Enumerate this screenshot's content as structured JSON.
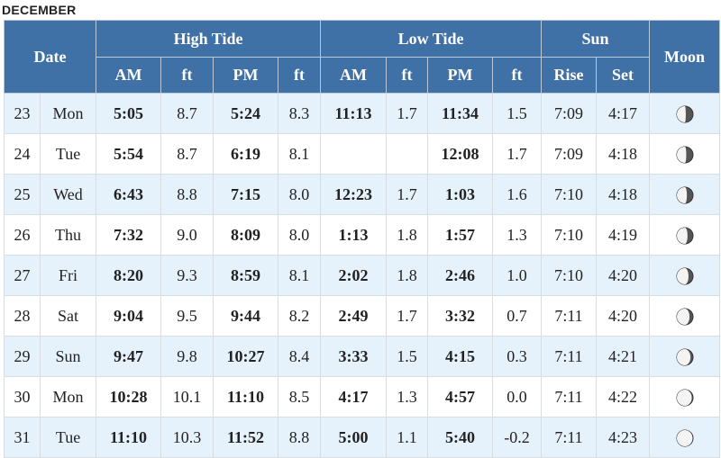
{
  "month": "DECEMBER",
  "headers": {
    "date": "Date",
    "high_tide": "High Tide",
    "low_tide": "Low Tide",
    "sun": "Sun",
    "moon": "Moon",
    "am": "AM",
    "ft": "ft",
    "pm": "PM",
    "rise": "Rise",
    "set": "Set"
  },
  "rows": [
    {
      "day": "23",
      "dow": "Mon",
      "high_am": "5:05",
      "high_am_ft": "8.7",
      "high_pm": "5:24",
      "high_pm_ft": "8.3",
      "low_am": "11:13",
      "low_am_ft": "1.7",
      "low_pm": "11:34",
      "low_pm_ft": "1.5",
      "sunrise": "7:09",
      "sunset": "4:17",
      "moon": "last-quarter-moon-icon"
    },
    {
      "day": "24",
      "dow": "Tue",
      "high_am": "5:54",
      "high_am_ft": "8.7",
      "high_pm": "6:19",
      "high_pm_ft": "8.1",
      "low_am": "",
      "low_am_ft": "",
      "low_pm": "12:08",
      "low_pm_ft": "1.7",
      "sunrise": "7:09",
      "sunset": "4:18",
      "moon": "last-quarter-moon-icon"
    },
    {
      "day": "25",
      "dow": "Wed",
      "high_am": "6:43",
      "high_am_ft": "8.8",
      "high_pm": "7:15",
      "high_pm_ft": "8.0",
      "low_am": "12:23",
      "low_am_ft": "1.7",
      "low_pm": "1:03",
      "low_pm_ft": "1.6",
      "sunrise": "7:10",
      "sunset": "4:18",
      "moon": "last-quarter-moon-icon"
    },
    {
      "day": "26",
      "dow": "Thu",
      "high_am": "7:32",
      "high_am_ft": "9.0",
      "high_pm": "8:09",
      "high_pm_ft": "8.0",
      "low_am": "1:13",
      "low_am_ft": "1.8",
      "low_pm": "1:57",
      "low_pm_ft": "1.3",
      "sunrise": "7:10",
      "sunset": "4:19",
      "moon": "waning-crescent-moon-icon"
    },
    {
      "day": "27",
      "dow": "Fri",
      "high_am": "8:20",
      "high_am_ft": "9.3",
      "high_pm": "8:59",
      "high_pm_ft": "8.1",
      "low_am": "2:02",
      "low_am_ft": "1.8",
      "low_pm": "2:46",
      "low_pm_ft": "1.0",
      "sunrise": "7:10",
      "sunset": "4:20",
      "moon": "waning-crescent-moon-icon"
    },
    {
      "day": "28",
      "dow": "Sat",
      "high_am": "9:04",
      "high_am_ft": "9.5",
      "high_pm": "9:44",
      "high_pm_ft": "8.2",
      "low_am": "2:49",
      "low_am_ft": "1.7",
      "low_pm": "3:32",
      "low_pm_ft": "0.7",
      "sunrise": "7:11",
      "sunset": "4:20",
      "moon": "waning-crescent-moon-icon"
    },
    {
      "day": "29",
      "dow": "Sun",
      "high_am": "9:47",
      "high_am_ft": "9.8",
      "high_pm": "10:27",
      "high_pm_ft": "8.4",
      "low_am": "3:33",
      "low_am_ft": "1.5",
      "low_pm": "4:15",
      "low_pm_ft": "0.3",
      "sunrise": "7:11",
      "sunset": "4:21",
      "moon": "waning-crescent-moon-icon"
    },
    {
      "day": "30",
      "dow": "Mon",
      "high_am": "10:28",
      "high_am_ft": "10.1",
      "high_pm": "11:10",
      "high_pm_ft": "8.5",
      "low_am": "4:17",
      "low_am_ft": "1.3",
      "low_pm": "4:57",
      "low_pm_ft": "0.0",
      "sunrise": "7:11",
      "sunset": "4:22",
      "moon": "new-moon-icon"
    },
    {
      "day": "31",
      "dow": "Tue",
      "high_am": "11:10",
      "high_am_ft": "10.3",
      "high_pm": "11:52",
      "high_pm_ft": "8.8",
      "low_am": "5:00",
      "low_am_ft": "1.1",
      "low_pm": "5:40",
      "low_pm_ft": "-0.2",
      "sunrise": "7:11",
      "sunset": "4:23",
      "moon": "new-moon-icon"
    }
  ],
  "moon_phase_fraction": [
    0.45,
    0.42,
    0.38,
    0.34,
    0.28,
    0.22,
    0.16,
    0.08,
    0.03
  ],
  "colors": {
    "header_bg": "#4071a6",
    "row_alt_bg": "#e6f2fb",
    "moon_dark": "#555555",
    "moon_light": "#f4f4f4"
  }
}
